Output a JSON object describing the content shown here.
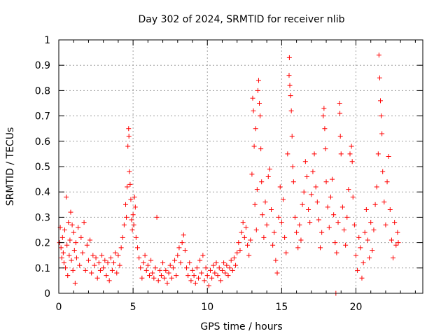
{
  "chart_data": {
    "type": "scatter",
    "title": "Day 302 of 2024, SRMTID for receiver nlib",
    "xlabel": "GPS time / hours",
    "ylabel": "SRMTID / TECUs",
    "xlim": [
      0,
      24.5
    ],
    "ylim": [
      0,
      1
    ],
    "xticks": [
      0,
      5,
      10,
      15,
      20
    ],
    "yticks": [
      0,
      0.1,
      0.2,
      0.3,
      0.4,
      0.5,
      0.6,
      0.7,
      0.8,
      0.9,
      1
    ],
    "xtick_labels": [
      "0",
      "5",
      "10",
      "15",
      "20"
    ],
    "ytick_labels": [
      "0",
      "0.1",
      "0.2",
      "0.3",
      "0.4",
      "0.5",
      "0.6",
      "0.7",
      "0.8",
      "0.9",
      "1"
    ],
    "grid": true,
    "marker": "+",
    "color": "#ff0000",
    "series": [
      {
        "name": "SRMTID",
        "points": [
          [
            0.05,
            0.2
          ],
          [
            0.1,
            0.26
          ],
          [
            0.15,
            0.18
          ],
          [
            0.2,
            0.14
          ],
          [
            0.25,
            0.22
          ],
          [
            0.3,
            0.16
          ],
          [
            0.35,
            0.12
          ],
          [
            0.4,
            0.25
          ],
          [
            0.45,
            0.1
          ],
          [
            0.5,
            0.38
          ],
          [
            0.55,
            0.19
          ],
          [
            0.6,
            0.07
          ],
          [
            0.65,
            0.28
          ],
          [
            0.7,
            0.15
          ],
          [
            0.75,
            0.21
          ],
          [
            0.8,
            0.32
          ],
          [
            0.85,
            0.13
          ],
          [
            0.9,
            0.27
          ],
          [
            0.95,
            0.09
          ],
          [
            1.0,
            0.24
          ],
          [
            1.05,
            0.17
          ],
          [
            1.1,
            0.04
          ],
          [
            1.15,
            0.2
          ],
          [
            1.2,
            0.14
          ],
          [
            1.3,
            0.26
          ],
          [
            1.4,
            0.11
          ],
          [
            1.5,
            0.22
          ],
          [
            1.6,
            0.16
          ],
          [
            1.7,
            0.28
          ],
          [
            1.8,
            0.09
          ],
          [
            1.9,
            0.19
          ],
          [
            2.0,
            0.13
          ],
          [
            2.1,
            0.21
          ],
          [
            2.2,
            0.08
          ],
          [
            2.3,
            0.15
          ],
          [
            2.4,
            0.11
          ],
          [
            2.5,
            0.14
          ],
          [
            2.6,
            0.06
          ],
          [
            2.7,
            0.12
          ],
          [
            2.8,
            0.09
          ],
          [
            2.9,
            0.15
          ],
          [
            3.0,
            0.1
          ],
          [
            3.1,
            0.13
          ],
          [
            3.2,
            0.07
          ],
          [
            3.3,
            0.12
          ],
          [
            3.4,
            0.05
          ],
          [
            3.5,
            0.14
          ],
          [
            3.6,
            0.09
          ],
          [
            3.7,
            0.12
          ],
          [
            3.8,
            0.16
          ],
          [
            3.9,
            0.08
          ],
          [
            4.0,
            0.15
          ],
          [
            4.1,
            0.11
          ],
          [
            4.2,
            0.18
          ],
          [
            4.3,
            0.22
          ],
          [
            4.4,
            0.27
          ],
          [
            4.5,
            0.35
          ],
          [
            4.55,
            0.3
          ],
          [
            4.6,
            0.42
          ],
          [
            4.65,
            0.58
          ],
          [
            4.7,
            0.65
          ],
          [
            4.72,
            0.62
          ],
          [
            4.75,
            0.48
          ],
          [
            4.8,
            0.43
          ],
          [
            4.85,
            0.37
          ],
          [
            4.9,
            0.29
          ],
          [
            4.95,
            0.25
          ],
          [
            5.0,
            0.31
          ],
          [
            5.05,
            0.27
          ],
          [
            5.1,
            0.38
          ],
          [
            5.15,
            0.34
          ],
          [
            5.2,
            0.22
          ],
          [
            5.3,
            0.18
          ],
          [
            5.4,
            0.14
          ],
          [
            5.5,
            0.1
          ],
          [
            5.6,
            0.06
          ],
          [
            5.7,
            0.12
          ],
          [
            5.8,
            0.15
          ],
          [
            5.9,
            0.09
          ],
          [
            6.0,
            0.11
          ],
          [
            6.1,
            0.07
          ],
          [
            6.2,
            0.13
          ],
          [
            6.3,
            0.08
          ],
          [
            6.4,
            0.06
          ],
          [
            6.5,
            0.1
          ],
          [
            6.6,
            0.3
          ],
          [
            6.7,
            0.05
          ],
          [
            6.8,
            0.09
          ],
          [
            6.9,
            0.07
          ],
          [
            7.0,
            0.12
          ],
          [
            7.1,
            0.06
          ],
          [
            7.2,
            0.09
          ],
          [
            7.3,
            0.04
          ],
          [
            7.4,
            0.08
          ],
          [
            7.5,
            0.11
          ],
          [
            7.6,
            0.06
          ],
          [
            7.7,
            0.1
          ],
          [
            7.8,
            0.13
          ],
          [
            7.9,
            0.07
          ],
          [
            8.0,
            0.15
          ],
          [
            8.1,
            0.18
          ],
          [
            8.2,
            0.12
          ],
          [
            8.3,
            0.2
          ],
          [
            8.4,
            0.23
          ],
          [
            8.5,
            0.17
          ],
          [
            8.6,
            0.1
          ],
          [
            8.7,
            0.07
          ],
          [
            8.8,
            0.12
          ],
          [
            8.9,
            0.05
          ],
          [
            9.0,
            0.09
          ],
          [
            9.1,
            0.07
          ],
          [
            9.2,
            0.04
          ],
          [
            9.3,
            0.1
          ],
          [
            9.4,
            0.06
          ],
          [
            9.5,
            0.13
          ],
          [
            9.6,
            0.08
          ],
          [
            9.7,
            0.15
          ],
          [
            9.8,
            0.05
          ],
          [
            9.9,
            0.1
          ],
          [
            10.0,
            0.07
          ],
          [
            10.1,
            0.03
          ],
          [
            10.2,
            0.09
          ],
          [
            10.3,
            0.06
          ],
          [
            10.4,
            0.11
          ],
          [
            10.5,
            0.08
          ],
          [
            10.6,
            0.12
          ],
          [
            10.7,
            0.07
          ],
          [
            10.8,
            0.1
          ],
          [
            10.9,
            0.05
          ],
          [
            11.0,
            0.09
          ],
          [
            11.1,
            0.12
          ],
          [
            11.2,
            0.08
          ],
          [
            11.3,
            0.11
          ],
          [
            11.4,
            0.07
          ],
          [
            11.5,
            0.1
          ],
          [
            11.6,
            0.13
          ],
          [
            11.7,
            0.09
          ],
          [
            11.8,
            0.14
          ],
          [
            11.9,
            0.11
          ],
          [
            12.0,
            0.16
          ],
          [
            12.1,
            0.2
          ],
          [
            12.2,
            0.17
          ],
          [
            12.3,
            0.24
          ],
          [
            12.4,
            0.28
          ],
          [
            12.5,
            0.22
          ],
          [
            12.6,
            0.26
          ],
          [
            12.7,
            0.19
          ],
          [
            12.8,
            0.15
          ],
          [
            12.9,
            0.21
          ],
          [
            13.0,
            0.47
          ],
          [
            13.05,
            0.77
          ],
          [
            13.1,
            0.72
          ],
          [
            13.15,
            0.58
          ],
          [
            13.2,
            0.35
          ],
          [
            13.25,
            0.65
          ],
          [
            13.3,
            0.25
          ],
          [
            13.35,
            0.41
          ],
          [
            13.4,
            0.8
          ],
          [
            13.45,
            0.84
          ],
          [
            13.5,
            0.75
          ],
          [
            13.55,
            0.7
          ],
          [
            13.6,
            0.57
          ],
          [
            13.65,
            0.44
          ],
          [
            13.7,
            0.31
          ],
          [
            13.8,
            0.22
          ],
          [
            13.9,
            0.36
          ],
          [
            14.0,
            0.27
          ],
          [
            14.1,
            0.46
          ],
          [
            14.2,
            0.49
          ],
          [
            14.3,
            0.33
          ],
          [
            14.4,
            0.19
          ],
          [
            14.5,
            0.24
          ],
          [
            14.6,
            0.13
          ],
          [
            14.7,
            0.08
          ],
          [
            14.8,
            0.3
          ],
          [
            14.9,
            0.42
          ],
          [
            15.0,
            0.28
          ],
          [
            15.1,
            0.37
          ],
          [
            15.2,
            0.22
          ],
          [
            15.3,
            0.16
          ],
          [
            15.4,
            0.55
          ],
          [
            15.5,
            0.86
          ],
          [
            15.52,
            0.93
          ],
          [
            15.55,
            0.82
          ],
          [
            15.6,
            0.78
          ],
          [
            15.65,
            0.72
          ],
          [
            15.7,
            0.62
          ],
          [
            15.75,
            0.5
          ],
          [
            15.8,
            0.44
          ],
          [
            15.9,
            0.3
          ],
          [
            16.0,
            0.24
          ],
          [
            16.1,
            0.18
          ],
          [
            16.2,
            0.27
          ],
          [
            16.3,
            0.21
          ],
          [
            16.4,
            0.35
          ],
          [
            16.5,
            0.4
          ],
          [
            16.6,
            0.52
          ],
          [
            16.7,
            0.46
          ],
          [
            16.8,
            0.33
          ],
          [
            16.9,
            0.28
          ],
          [
            17.0,
            0.39
          ],
          [
            17.1,
            0.48
          ],
          [
            17.2,
            0.55
          ],
          [
            17.3,
            0.42
          ],
          [
            17.4,
            0.36
          ],
          [
            17.5,
            0.29
          ],
          [
            17.6,
            0.18
          ],
          [
            17.7,
            0.24
          ],
          [
            17.8,
            0.7
          ],
          [
            17.85,
            0.73
          ],
          [
            17.9,
            0.65
          ],
          [
            17.95,
            0.57
          ],
          [
            18.0,
            0.44
          ],
          [
            18.1,
            0.34
          ],
          [
            18.2,
            0.26
          ],
          [
            18.3,
            0.38
          ],
          [
            18.4,
            0.45
          ],
          [
            18.5,
            0.31
          ],
          [
            18.6,
            0.2
          ],
          [
            18.65,
            0.0
          ],
          [
            18.7,
            0.16
          ],
          [
            18.8,
            0.28
          ],
          [
            18.9,
            0.75
          ],
          [
            18.92,
            0.71
          ],
          [
            18.95,
            0.62
          ],
          [
            19.0,
            0.55
          ],
          [
            19.1,
            0.34
          ],
          [
            19.2,
            0.25
          ],
          [
            19.3,
            0.19
          ],
          [
            19.4,
            0.3
          ],
          [
            19.5,
            0.41
          ],
          [
            19.6,
            0.55
          ],
          [
            19.7,
            0.58
          ],
          [
            19.75,
            0.52
          ],
          [
            19.8,
            0.38
          ],
          [
            19.9,
            0.27
          ],
          [
            20.0,
            0.15
          ],
          [
            20.1,
            0.09
          ],
          [
            20.2,
            0.22
          ],
          [
            20.3,
            0.18
          ],
          [
            20.4,
            0.06
          ],
          [
            20.5,
            0.12
          ],
          [
            20.6,
            0.24
          ],
          [
            20.7,
            0.33
          ],
          [
            20.8,
            0.21
          ],
          [
            20.9,
            0.14
          ],
          [
            21.0,
            0.28
          ],
          [
            21.1,
            0.17
          ],
          [
            21.2,
            0.25
          ],
          [
            21.3,
            0.35
          ],
          [
            21.4,
            0.42
          ],
          [
            21.5,
            0.55
          ],
          [
            21.55,
            0.94
          ],
          [
            21.6,
            0.85
          ],
          [
            21.65,
            0.76
          ],
          [
            21.7,
            0.7
          ],
          [
            21.75,
            0.63
          ],
          [
            21.8,
            0.48
          ],
          [
            21.9,
            0.36
          ],
          [
            22.0,
            0.27
          ],
          [
            22.1,
            0.44
          ],
          [
            22.2,
            0.54
          ],
          [
            22.3,
            0.33
          ],
          [
            22.4,
            0.21
          ],
          [
            22.5,
            0.14
          ],
          [
            22.6,
            0.28
          ],
          [
            22.7,
            0.19
          ],
          [
            22.8,
            0.24
          ],
          [
            22.85,
            0.2
          ]
        ]
      }
    ]
  }
}
